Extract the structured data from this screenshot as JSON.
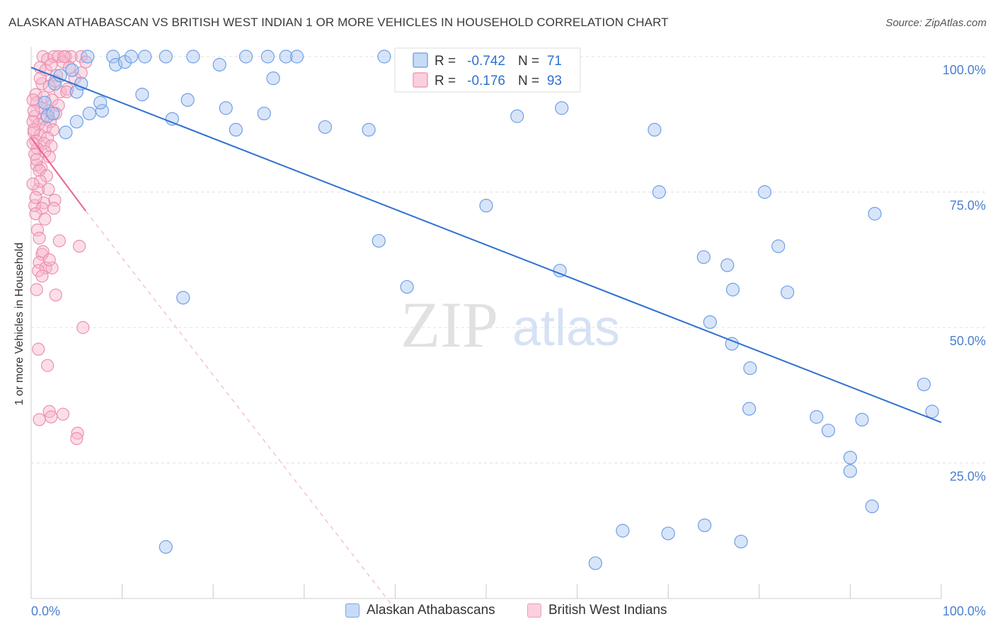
{
  "title": "ALASKAN ATHABASCAN VS BRITISH WEST INDIAN 1 OR MORE VEHICLES IN HOUSEHOLD CORRELATION CHART",
  "source": "Source: ZipAtlas.com",
  "watermark": {
    "zip": "ZIP",
    "atlas": "atlas"
  },
  "colors": {
    "blue": "#6e9fe6",
    "blue_line": "#2f6fd1",
    "pink": "#f08fb0",
    "pink_line": "#e8638f",
    "tick_text": "#4a7fd0"
  },
  "legend_box": {
    "rows": [
      {
        "r_label": "R =",
        "r_value": "-0.742",
        "n_label": "N =",
        "n_value": "71"
      },
      {
        "r_label": "R =",
        "r_value": "-0.176",
        "n_label": "N =",
        "n_value": "93"
      }
    ]
  },
  "chart_data": {
    "type": "scatter",
    "title": "ALASKAN ATHABASCAN VS BRITISH WEST INDIAN 1 OR MORE VEHICLES IN HOUSEHOLD CORRELATION CHART",
    "xlabel": "",
    "ylabel": "1 or more Vehicles in Household",
    "xlim": [
      0,
      100
    ],
    "ylim": [
      0,
      100
    ],
    "x_tick_labels": [
      "0.0%",
      "100.0%"
    ],
    "y_tick_labels": [
      {
        "value": 100,
        "label": "100.0%"
      },
      {
        "value": 75,
        "label": "75.0%"
      },
      {
        "value": 50,
        "label": "50.0%"
      },
      {
        "value": 25,
        "label": "25.0%"
      }
    ],
    "grid": true,
    "legend_position": "bottom",
    "series": [
      {
        "name": "Alaskan Athabascans",
        "color": "#6e9fe6",
        "r": -0.742,
        "n": 71,
        "trend": {
          "x": [
            0,
            100
          ],
          "y": [
            98.0,
            32.5
          ]
        },
        "points": [
          [
            1.5,
            91.5
          ],
          [
            1.8,
            89.0
          ],
          [
            2.6,
            95.0
          ],
          [
            2.4,
            89.5
          ],
          [
            3.2,
            96.5
          ],
          [
            3.8,
            86.0
          ],
          [
            4.5,
            97.5
          ],
          [
            5.0,
            93.5
          ],
          [
            5.5,
            95.0
          ],
          [
            6.2,
            100.0
          ],
          [
            6.4,
            89.5
          ],
          [
            7.8,
            90.0
          ],
          [
            9.0,
            100.0
          ],
          [
            9.3,
            98.5
          ],
          [
            10.3,
            99.0
          ],
          [
            12.2,
            93.0
          ],
          [
            12.5,
            100.0
          ],
          [
            14.8,
            100.0
          ],
          [
            15.5,
            88.5
          ],
          [
            17.2,
            92.0
          ],
          [
            17.8,
            100.0
          ],
          [
            20.7,
            98.5
          ],
          [
            21.4,
            90.5
          ],
          [
            22.5,
            86.5
          ],
          [
            23.6,
            100.0
          ],
          [
            25.6,
            89.5
          ],
          [
            26.0,
            100.0
          ],
          [
            26.6,
            96.0
          ],
          [
            28.0,
            100.0
          ],
          [
            29.2,
            100.0
          ],
          [
            32.3,
            87.0
          ],
          [
            37.1,
            86.5
          ],
          [
            38.8,
            100.0
          ],
          [
            53.4,
            89.0
          ],
          [
            58.3,
            90.5
          ],
          [
            68.5,
            86.5
          ],
          [
            50.0,
            72.5
          ],
          [
            69.0,
            75.0
          ],
          [
            80.6,
            75.0
          ],
          [
            92.7,
            71.0
          ],
          [
            38.2,
            66.0
          ],
          [
            73.9,
            63.0
          ],
          [
            76.5,
            61.5
          ],
          [
            82.1,
            65.0
          ],
          [
            58.1,
            60.5
          ],
          [
            41.3,
            57.5
          ],
          [
            77.1,
            57.0
          ],
          [
            83.1,
            56.5
          ],
          [
            16.7,
            55.5
          ],
          [
            74.6,
            51.0
          ],
          [
            77.0,
            47.0
          ],
          [
            79.0,
            42.5
          ],
          [
            98.1,
            39.5
          ],
          [
            99.0,
            34.5
          ],
          [
            78.9,
            35.0
          ],
          [
            86.3,
            33.5
          ],
          [
            91.3,
            33.0
          ],
          [
            87.6,
            31.0
          ],
          [
            90.0,
            26.0
          ],
          [
            90.0,
            23.5
          ],
          [
            92.4,
            17.0
          ],
          [
            65.0,
            12.5
          ],
          [
            70.0,
            12.0
          ],
          [
            74.0,
            13.5
          ],
          [
            78.0,
            10.5
          ],
          [
            62.0,
            6.5
          ],
          [
            14.8,
            9.5
          ],
          [
            42.8,
            100.0
          ],
          [
            11.0,
            100.0
          ],
          [
            5.0,
            88.0
          ],
          [
            7.6,
            91.5
          ]
        ]
      },
      {
        "name": "British West Indians",
        "color": "#f08fb0",
        "r": -0.176,
        "n": 93,
        "trend": {
          "x": [
            0,
            6.0
          ],
          "y": [
            85.0,
            71.5
          ]
        },
        "trend_extension": {
          "x": [
            6.0,
            40.0
          ],
          "y": [
            71.5,
            -2.0
          ]
        },
        "points": [
          [
            1.3,
            100.0
          ],
          [
            1.8,
            99.5
          ],
          [
            2.5,
            100.0
          ],
          [
            3.0,
            100.0
          ],
          [
            3.8,
            100.0
          ],
          [
            4.4,
            100.0
          ],
          [
            5.5,
            100.0
          ],
          [
            6.0,
            99.0
          ],
          [
            1.0,
            98.0
          ],
          [
            1.6,
            97.5
          ],
          [
            2.2,
            98.5
          ],
          [
            2.8,
            96.5
          ],
          [
            3.5,
            99.0
          ],
          [
            4.8,
            96.0
          ],
          [
            5.5,
            97.0
          ],
          [
            1.2,
            95.0
          ],
          [
            2.0,
            94.5
          ],
          [
            3.2,
            93.5
          ],
          [
            4.0,
            94.0
          ],
          [
            0.5,
            93.0
          ],
          [
            1.4,
            92.5
          ],
          [
            2.3,
            92.0
          ],
          [
            3.0,
            91.0
          ],
          [
            0.6,
            91.5
          ],
          [
            1.1,
            90.5
          ],
          [
            1.9,
            90.0
          ],
          [
            2.7,
            89.5
          ],
          [
            0.4,
            89.0
          ],
          [
            1.3,
            88.5
          ],
          [
            2.1,
            88.0
          ],
          [
            0.8,
            87.5
          ],
          [
            1.6,
            87.0
          ],
          [
            2.4,
            86.5
          ],
          [
            0.3,
            86.0
          ],
          [
            1.0,
            85.5
          ],
          [
            1.8,
            85.0
          ],
          [
            0.5,
            84.5
          ],
          [
            1.4,
            84.0
          ],
          [
            2.2,
            83.5
          ],
          [
            0.7,
            83.0
          ],
          [
            1.5,
            82.5
          ],
          [
            2.0,
            81.5
          ],
          [
            0.6,
            80.0
          ],
          [
            1.1,
            79.5
          ],
          [
            0.9,
            79.0
          ],
          [
            1.7,
            78.0
          ],
          [
            0.8,
            75.5
          ],
          [
            1.9,
            75.5
          ],
          [
            2.6,
            73.5
          ],
          [
            1.4,
            73.0
          ],
          [
            0.4,
            72.5
          ],
          [
            1.2,
            72.0
          ],
          [
            2.5,
            72.0
          ],
          [
            0.5,
            71.0
          ],
          [
            0.7,
            68.0
          ],
          [
            3.1,
            66.0
          ],
          [
            5.3,
            65.0
          ],
          [
            1.2,
            63.5
          ],
          [
            0.9,
            62.0
          ],
          [
            1.6,
            61.0
          ],
          [
            0.8,
            60.5
          ],
          [
            2.3,
            61.0
          ],
          [
            2.7,
            56.0
          ],
          [
            5.7,
            50.0
          ],
          [
            0.8,
            46.0
          ],
          [
            1.8,
            43.0
          ],
          [
            2.0,
            34.5
          ],
          [
            2.2,
            33.5
          ],
          [
            3.5,
            34.0
          ],
          [
            5.1,
            30.5
          ],
          [
            5.0,
            29.5
          ],
          [
            0.9,
            33.0
          ],
          [
            3.6,
            100.0
          ],
          [
            4.2,
            98.0
          ],
          [
            1.0,
            96.0
          ],
          [
            2.6,
            95.5
          ],
          [
            3.9,
            93.5
          ],
          [
            0.2,
            92.0
          ],
          [
            0.3,
            90.0
          ],
          [
            0.2,
            88.0
          ],
          [
            0.3,
            86.5
          ],
          [
            0.2,
            84.0
          ],
          [
            0.4,
            82.0
          ],
          [
            0.6,
            81.0
          ],
          [
            1.0,
            77.0
          ],
          [
            0.5,
            74.0
          ],
          [
            0.2,
            76.5
          ],
          [
            1.5,
            70.0
          ],
          [
            0.9,
            66.5
          ],
          [
            1.3,
            64.0
          ],
          [
            2.0,
            62.5
          ],
          [
            1.2,
            59.5
          ],
          [
            0.6,
            57.0
          ]
        ]
      }
    ]
  }
}
